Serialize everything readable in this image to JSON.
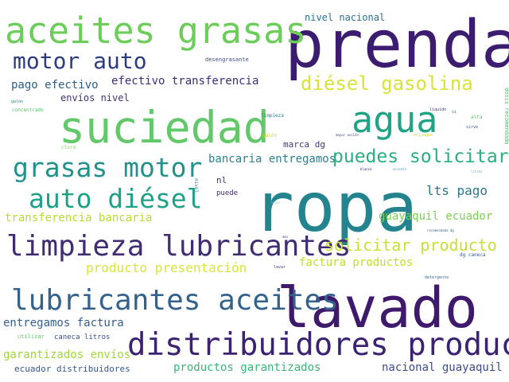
{
  "words": [
    {
      "text": "prendas",
      "color": "#3b1c6e"
    },
    {
      "text": "ropa",
      "color": "#23838e"
    },
    {
      "text": "lavado",
      "color": "#3f1a6c"
    },
    {
      "text": "suciedad",
      "color": "#62c86a"
    },
    {
      "text": "aceites grasas",
      "color": "#6ccd5a"
    },
    {
      "text": "agua",
      "color": "#21a385"
    },
    {
      "text": "distribuidores productos",
      "color": "#3b2272"
    },
    {
      "text": "limpieza lubricantes",
      "color": "#412b73"
    },
    {
      "text": "lubricantes aceites",
      "color": "#33628d"
    },
    {
      "text": "grasas motor",
      "color": "#22918a"
    },
    {
      "text": "auto diésel",
      "color": "#1fa187"
    },
    {
      "text": "motor auto",
      "color": "#2b3c80"
    },
    {
      "text": "diésel gasolina",
      "color": "#d9e23a"
    },
    {
      "text": "puedes solicitar",
      "color": "#29af7f"
    },
    {
      "text": "solicitar producto",
      "color": "#c9e034"
    },
    {
      "text": "producto presentación",
      "color": "#d8e43c"
    },
    {
      "text": "lts pago",
      "color": "#2a788e"
    },
    {
      "text": "factura productos",
      "color": "#c2df23"
    },
    {
      "text": "transferencia bancaria",
      "color": "#b6dc2e"
    },
    {
      "text": "bancaria entregamos",
      "color": "#2c7f8e"
    },
    {
      "text": "guayaquil ecuador",
      "color": "#7ad151"
    },
    {
      "text": "pago efectivo",
      "color": "#2c5d8b"
    },
    {
      "text": "efectivo transferencia",
      "color": "#3d2c7a"
    },
    {
      "text": "envíos nivel",
      "color": "#433470"
    },
    {
      "text": "entregamos factura",
      "color": "#34608d"
    },
    {
      "text": "garantizados envíos",
      "color": "#9fd838"
    },
    {
      "text": "ecuador distribuidores",
      "color": "#37588c"
    },
    {
      "text": "productos garantizados",
      "color": "#36b779"
    },
    {
      "text": "nacional guayaquil",
      "color": "#3e4b89"
    },
    {
      "text": "nivel nacional",
      "color": "#2c738e"
    },
    {
      "text": "marca dg",
      "color": "#3a3b84"
    },
    {
      "text": "nl",
      "color": "#2e3d85"
    },
    {
      "text": "puede",
      "color": "#3f2d73"
    },
    {
      "text": "caneca litros",
      "color": "#3b4d86"
    },
    {
      "text": "utilizar",
      "color": "#62c86a"
    },
    {
      "text": "desengrasante",
      "color": "#3e4a89"
    },
    {
      "text": "galón",
      "color": "#26828e"
    },
    {
      "text": "limpieza",
      "color": "#2b7c8e"
    },
    {
      "text": "galón",
      "color": "#bddf26"
    },
    {
      "text": "líquido",
      "color": "#433871"
    },
    {
      "text": "si",
      "color": "#31688e"
    },
    {
      "text": "alta",
      "color": "#54c568"
    },
    {
      "text": "sirve",
      "color": "#3c4f8a"
    },
    {
      "text": "cloro",
      "color": "#7fd34e"
    },
    {
      "text": "dg caneca",
      "color": "#3b528b"
    },
    {
      "text": "detergente",
      "color": "#2f6b8e"
    },
    {
      "text": "concentrado",
      "color": "#52c569"
    },
    {
      "text": "mayor acción",
      "color": "#3e4a89"
    },
    {
      "text": "enjuague",
      "color": "#d2e21b"
    },
    {
      "text": "blanca",
      "color": "#3d2374"
    },
    {
      "text": "asiento",
      "color": "#38a3b1"
    },
    {
      "text": "litros",
      "color": "#6c9ec2"
    },
    {
      "text": "lavar",
      "color": "#3f4788"
    },
    {
      "text": "recomendada dg",
      "color": "#31668e"
    },
    {
      "text": "más",
      "color": "#3e4a89"
    },
    {
      "text": "telas",
      "color": "#89c7c1"
    },
    {
      "text": "dosis recomendada",
      "color": "#4ac16d"
    },
    {
      "text": "nivel",
      "color": "#2a7a8e"
    }
  ]
}
